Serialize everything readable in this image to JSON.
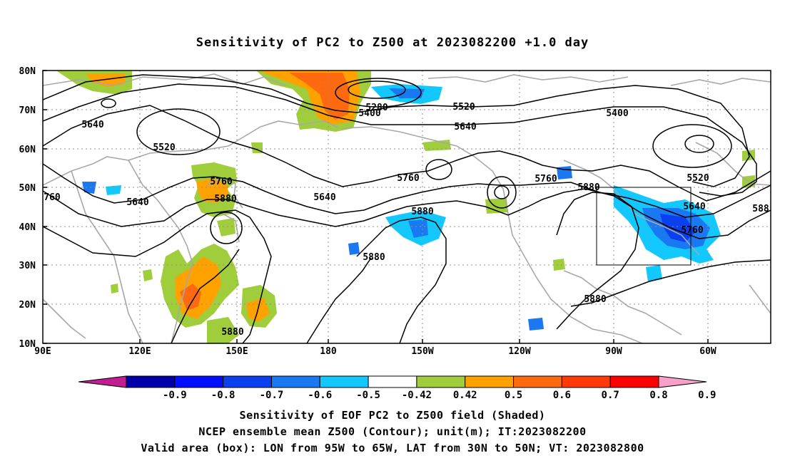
{
  "title": "Sensitivity of PC2 to Z500 at 2023082200 +1.0 day",
  "lat_labels": [
    "80N",
    "70N",
    "60N",
    "50N",
    "40N",
    "30N",
    "20N",
    "10N"
  ],
  "lon_labels": [
    "90E",
    "120E",
    "150E",
    "180",
    "150W",
    "120W",
    "90W",
    "60W"
  ],
  "contour_labels": [
    "5280",
    "5400",
    "5520",
    "5400",
    "5640",
    "5520",
    "5640",
    "5760",
    "5880",
    "5640",
    "5760",
    "5640",
    "5880",
    "5880",
    "5760",
    "5880",
    "5520",
    "5640",
    "5760",
    "588",
    "5880",
    "5880",
    "760"
  ],
  "colorbar": {
    "colors": [
      "#c21d93",
      "#0000aa",
      "#0010ff",
      "#0a40ee",
      "#1a78f2",
      "#12c8ff",
      "#ffffff",
      "#9fcd3c",
      "#ffa200",
      "#ff6a10",
      "#ff3a08",
      "#ff0000",
      "#f7a0c8"
    ],
    "labels": [
      "-0.9",
      "-0.8",
      "-0.7",
      "-0.6",
      "-0.5",
      "-0.42",
      "0.42",
      "0.5",
      "0.6",
      "0.7",
      "0.8",
      "0.9"
    ]
  },
  "caption": {
    "line1": "Sensitivity of EOF PC2 to Z500 field (Shaded)",
    "line2": "NCEP ensemble mean Z500 (Contour); unit(m); IT:2023082200",
    "line3": "Valid area (box): LON from 95W to 65W, LAT from 30N to 50N; VT: 2023082800"
  }
}
